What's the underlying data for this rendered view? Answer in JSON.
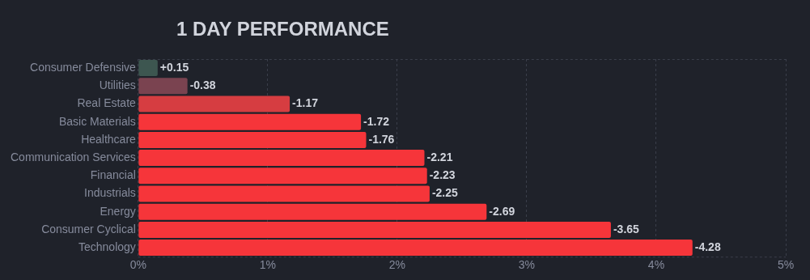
{
  "chart_data": {
    "type": "bar",
    "orientation": "horizontal",
    "title": "1 DAY PERFORMANCE",
    "categories": [
      "Consumer Defensive",
      "Utilities",
      "Real Estate",
      "Basic Materials",
      "Healthcare",
      "Communication Services",
      "Financial",
      "Industrials",
      "Energy",
      "Consumer Cyclical",
      "Technology"
    ],
    "values": [
      0.15,
      0.38,
      1.17,
      1.72,
      1.76,
      2.21,
      2.23,
      2.25,
      2.69,
      3.65,
      4.28
    ],
    "annotations": [
      {
        "text": "+0.15",
        "x": 0.15,
        "y": "Consumer Defensive"
      },
      {
        "text": "-0.38",
        "x": 0.38,
        "y": "Utilities"
      },
      {
        "text": "-1.17",
        "x": 1.17,
        "y": "Real Estate"
      },
      {
        "text": "-1.72",
        "x": 1.72,
        "y": "Basic Materials"
      },
      {
        "text": "-1.76",
        "x": 1.76,
        "y": "Healthcare"
      },
      {
        "text": "-2.21",
        "x": 2.21,
        "y": "Communication Services"
      },
      {
        "text": "-2.23",
        "x": 2.23,
        "y": "Financial"
      },
      {
        "text": "-2.25",
        "x": 2.25,
        "y": "Industrials"
      },
      {
        "text": "-2.69",
        "x": 2.69,
        "y": "Energy"
      },
      {
        "text": "-3.65",
        "x": 3.65,
        "y": "Consumer Cyclical"
      },
      {
        "text": "-4.28",
        "x": 4.28,
        "y": "Technology"
      }
    ],
    "colors": [
      "#3d5650",
      "#7a4350",
      "#d63d41",
      "#f6353a",
      "#f6353a",
      "#f6353a",
      "#f6353a",
      "#f6353a",
      "#f6353a",
      "#f6353a",
      "#f6353a"
    ],
    "xlim": [
      0,
      5
    ],
    "xticks": [
      {
        "value": 0,
        "label": "0%"
      },
      {
        "value": 1,
        "label": "1%"
      },
      {
        "value": 2,
        "label": "2%"
      },
      {
        "value": 3,
        "label": "3%"
      },
      {
        "value": 4,
        "label": "4%"
      },
      {
        "value": 5,
        "label": "5%"
      }
    ],
    "grid": "x",
    "legend": false
  }
}
